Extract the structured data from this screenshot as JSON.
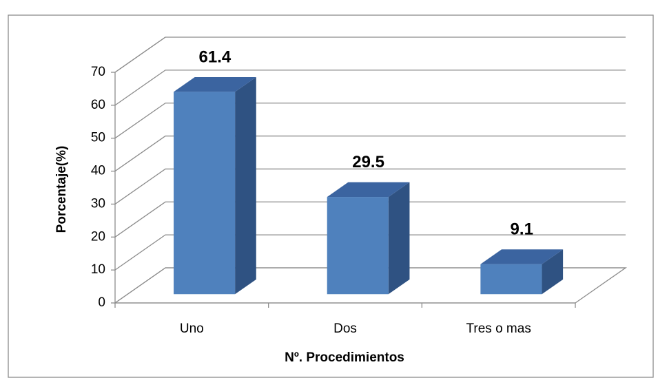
{
  "chart_data": {
    "type": "bar3d",
    "x_label": "Nº. Procedimientos",
    "y_label": "Porcentaje(%)",
    "categories": [
      "Uno",
      "Dos",
      "Tres o mas"
    ],
    "values": [
      61.4,
      29.5,
      9.1
    ],
    "colors": {
      "front": "#4f81bd",
      "side": "#2f5282",
      "top": "#3b64a0"
    },
    "ylim": [
      0,
      70
    ],
    "yticks": [
      0,
      10,
      20,
      30,
      40,
      50,
      60,
      70
    ],
    "grid": true
  }
}
